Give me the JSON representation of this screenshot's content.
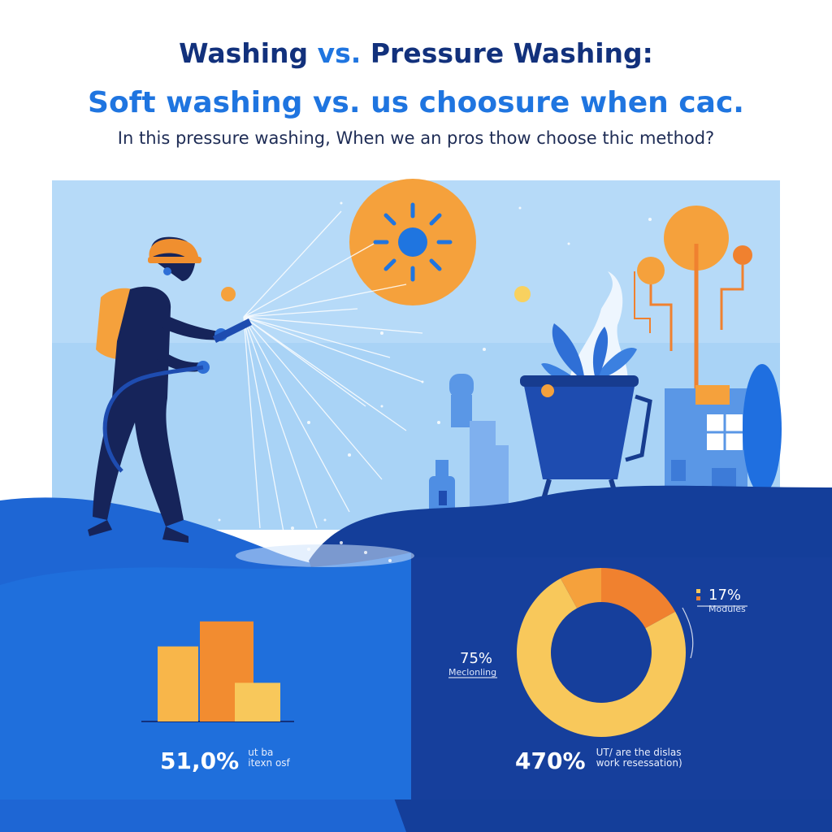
{
  "header": {
    "title_part1": "Washing ",
    "title_accent": "vs.",
    "title_part2": " Pressure Washing:",
    "subtitle": "Soft washing vs. us choosure when cac.",
    "tagline": "In this pressure washing, When we an pros thow choose thic method?"
  },
  "colors": {
    "navy": "#12317c",
    "accent_blue": "#1f75e0",
    "sky": "#a9d3f6",
    "orange": "#f5a13c",
    "dark_orange": "#f0812f",
    "yellow": "#f8c85b"
  },
  "icons": [
    "sun-icon",
    "worker-icon",
    "plant-icon",
    "tree-icon",
    "building-icon"
  ],
  "chart_data": [
    {
      "type": "bar",
      "categories": [
        "",
        "",
        ""
      ],
      "values": [
        3.3,
        4.4,
        1.7
      ],
      "title": "",
      "stat_value": "51,0%",
      "stat_caption_line1": "ut ba",
      "stat_caption_line2": "itexn osf"
    },
    {
      "type": "pie",
      "labels": [
        "17%",
        "75%",
        ""
      ],
      "values": [
        17,
        75,
        8
      ],
      "label_captions": [
        "Modules",
        "Meclonling",
        ""
      ],
      "stat_value": "470%",
      "stat_caption_line1": "UT/ are the dislas",
      "stat_caption_line2": "work resessation)"
    }
  ]
}
